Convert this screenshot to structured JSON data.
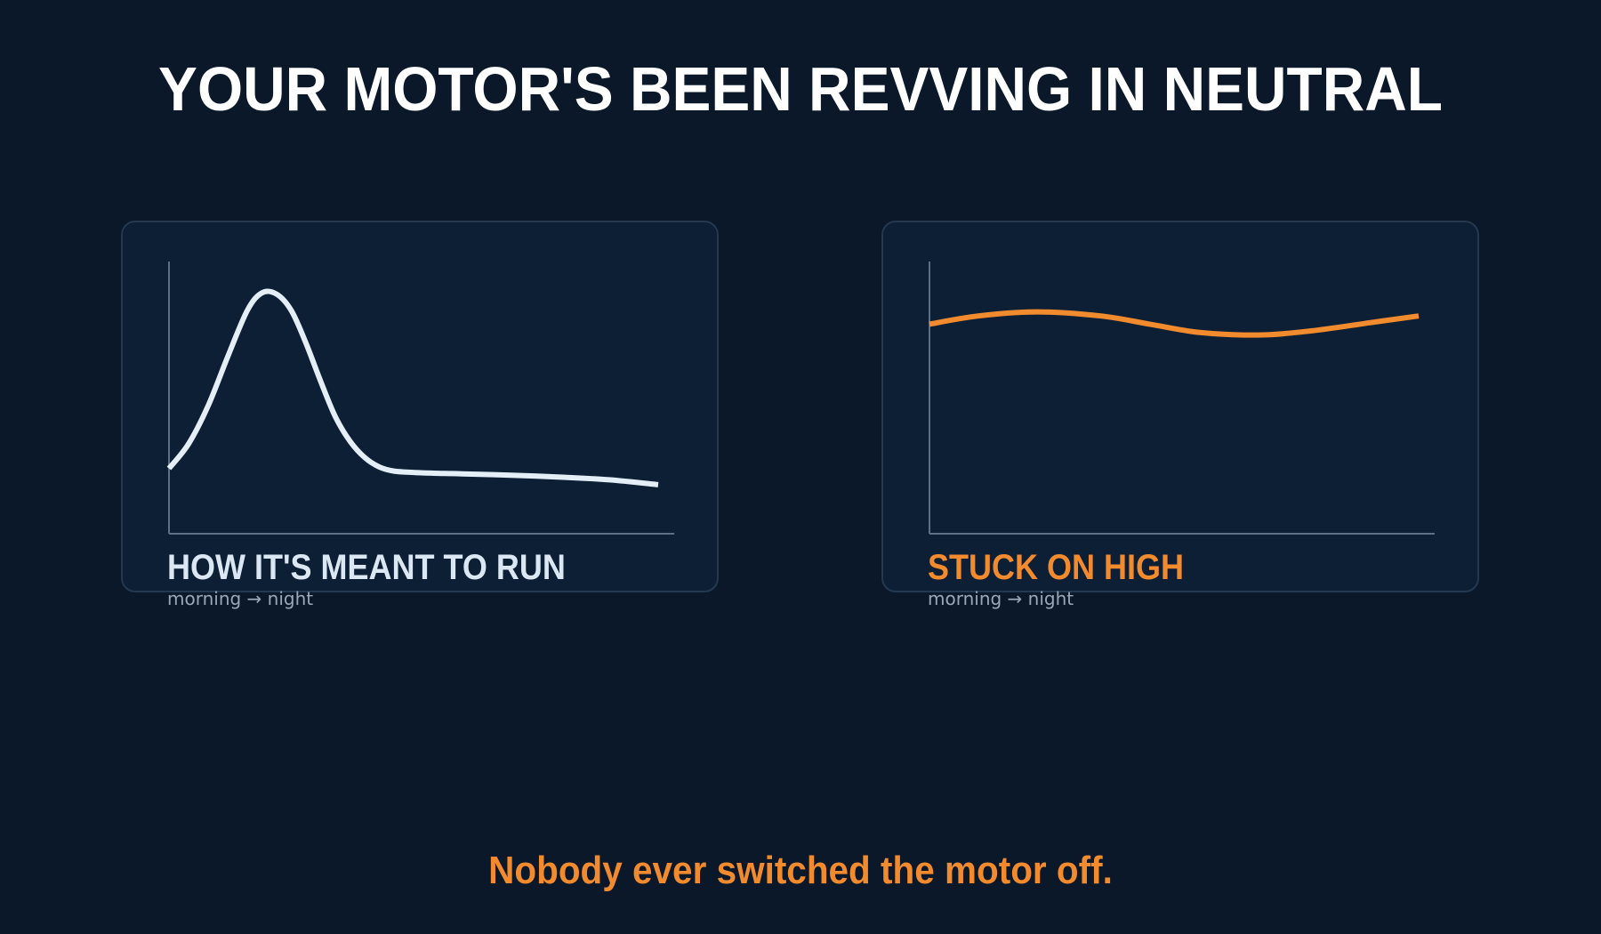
{
  "headline": "YOUR MOTOR'S BEEN REVVING IN NEUTRAL",
  "footer": "Nobody ever switched the motor off.",
  "colors": {
    "background": "#0a1829",
    "panel": "#0d1f35",
    "panel_border": "#24384f",
    "axis": "#5c6f86",
    "normal_line": "#e3eef7",
    "stuck_line": "#f28a2e",
    "subtitle": "#9aa7b6"
  },
  "chart_data": [
    {
      "type": "line",
      "title": "HOW IT'S MEANT TO RUN",
      "xlabel": "morning → night",
      "ylabel": "",
      "color": "#e3eef7",
      "xlim": [
        0,
        1
      ],
      "ylim": [
        0,
        1
      ],
      "grid": false,
      "x": [
        0,
        0.04,
        0.08,
        0.12,
        0.16,
        0.19,
        0.22,
        0.25,
        0.28,
        0.31,
        0.34,
        0.37,
        0.4,
        0.43,
        0.46,
        0.5,
        0.55,
        0.6,
        0.7,
        0.8,
        0.9,
        1.0
      ],
      "y": [
        0.24,
        0.33,
        0.47,
        0.65,
        0.82,
        0.885,
        0.88,
        0.82,
        0.7,
        0.56,
        0.43,
        0.34,
        0.28,
        0.245,
        0.23,
        0.225,
        0.222,
        0.22,
        0.215,
        0.208,
        0.198,
        0.18
      ]
    },
    {
      "type": "line",
      "title": "STUCK ON HIGH",
      "xlabel": "morning → night",
      "ylabel": "",
      "color": "#f28a2e",
      "xlim": [
        0,
        1
      ],
      "ylim": [
        0,
        1
      ],
      "grid": false,
      "x": [
        0,
        0.1,
        0.22,
        0.35,
        0.45,
        0.55,
        0.67,
        0.78,
        0.9,
        1.0
      ],
      "y": [
        0.77,
        0.8,
        0.815,
        0.8,
        0.77,
        0.74,
        0.73,
        0.745,
        0.775,
        0.8
      ]
    }
  ]
}
